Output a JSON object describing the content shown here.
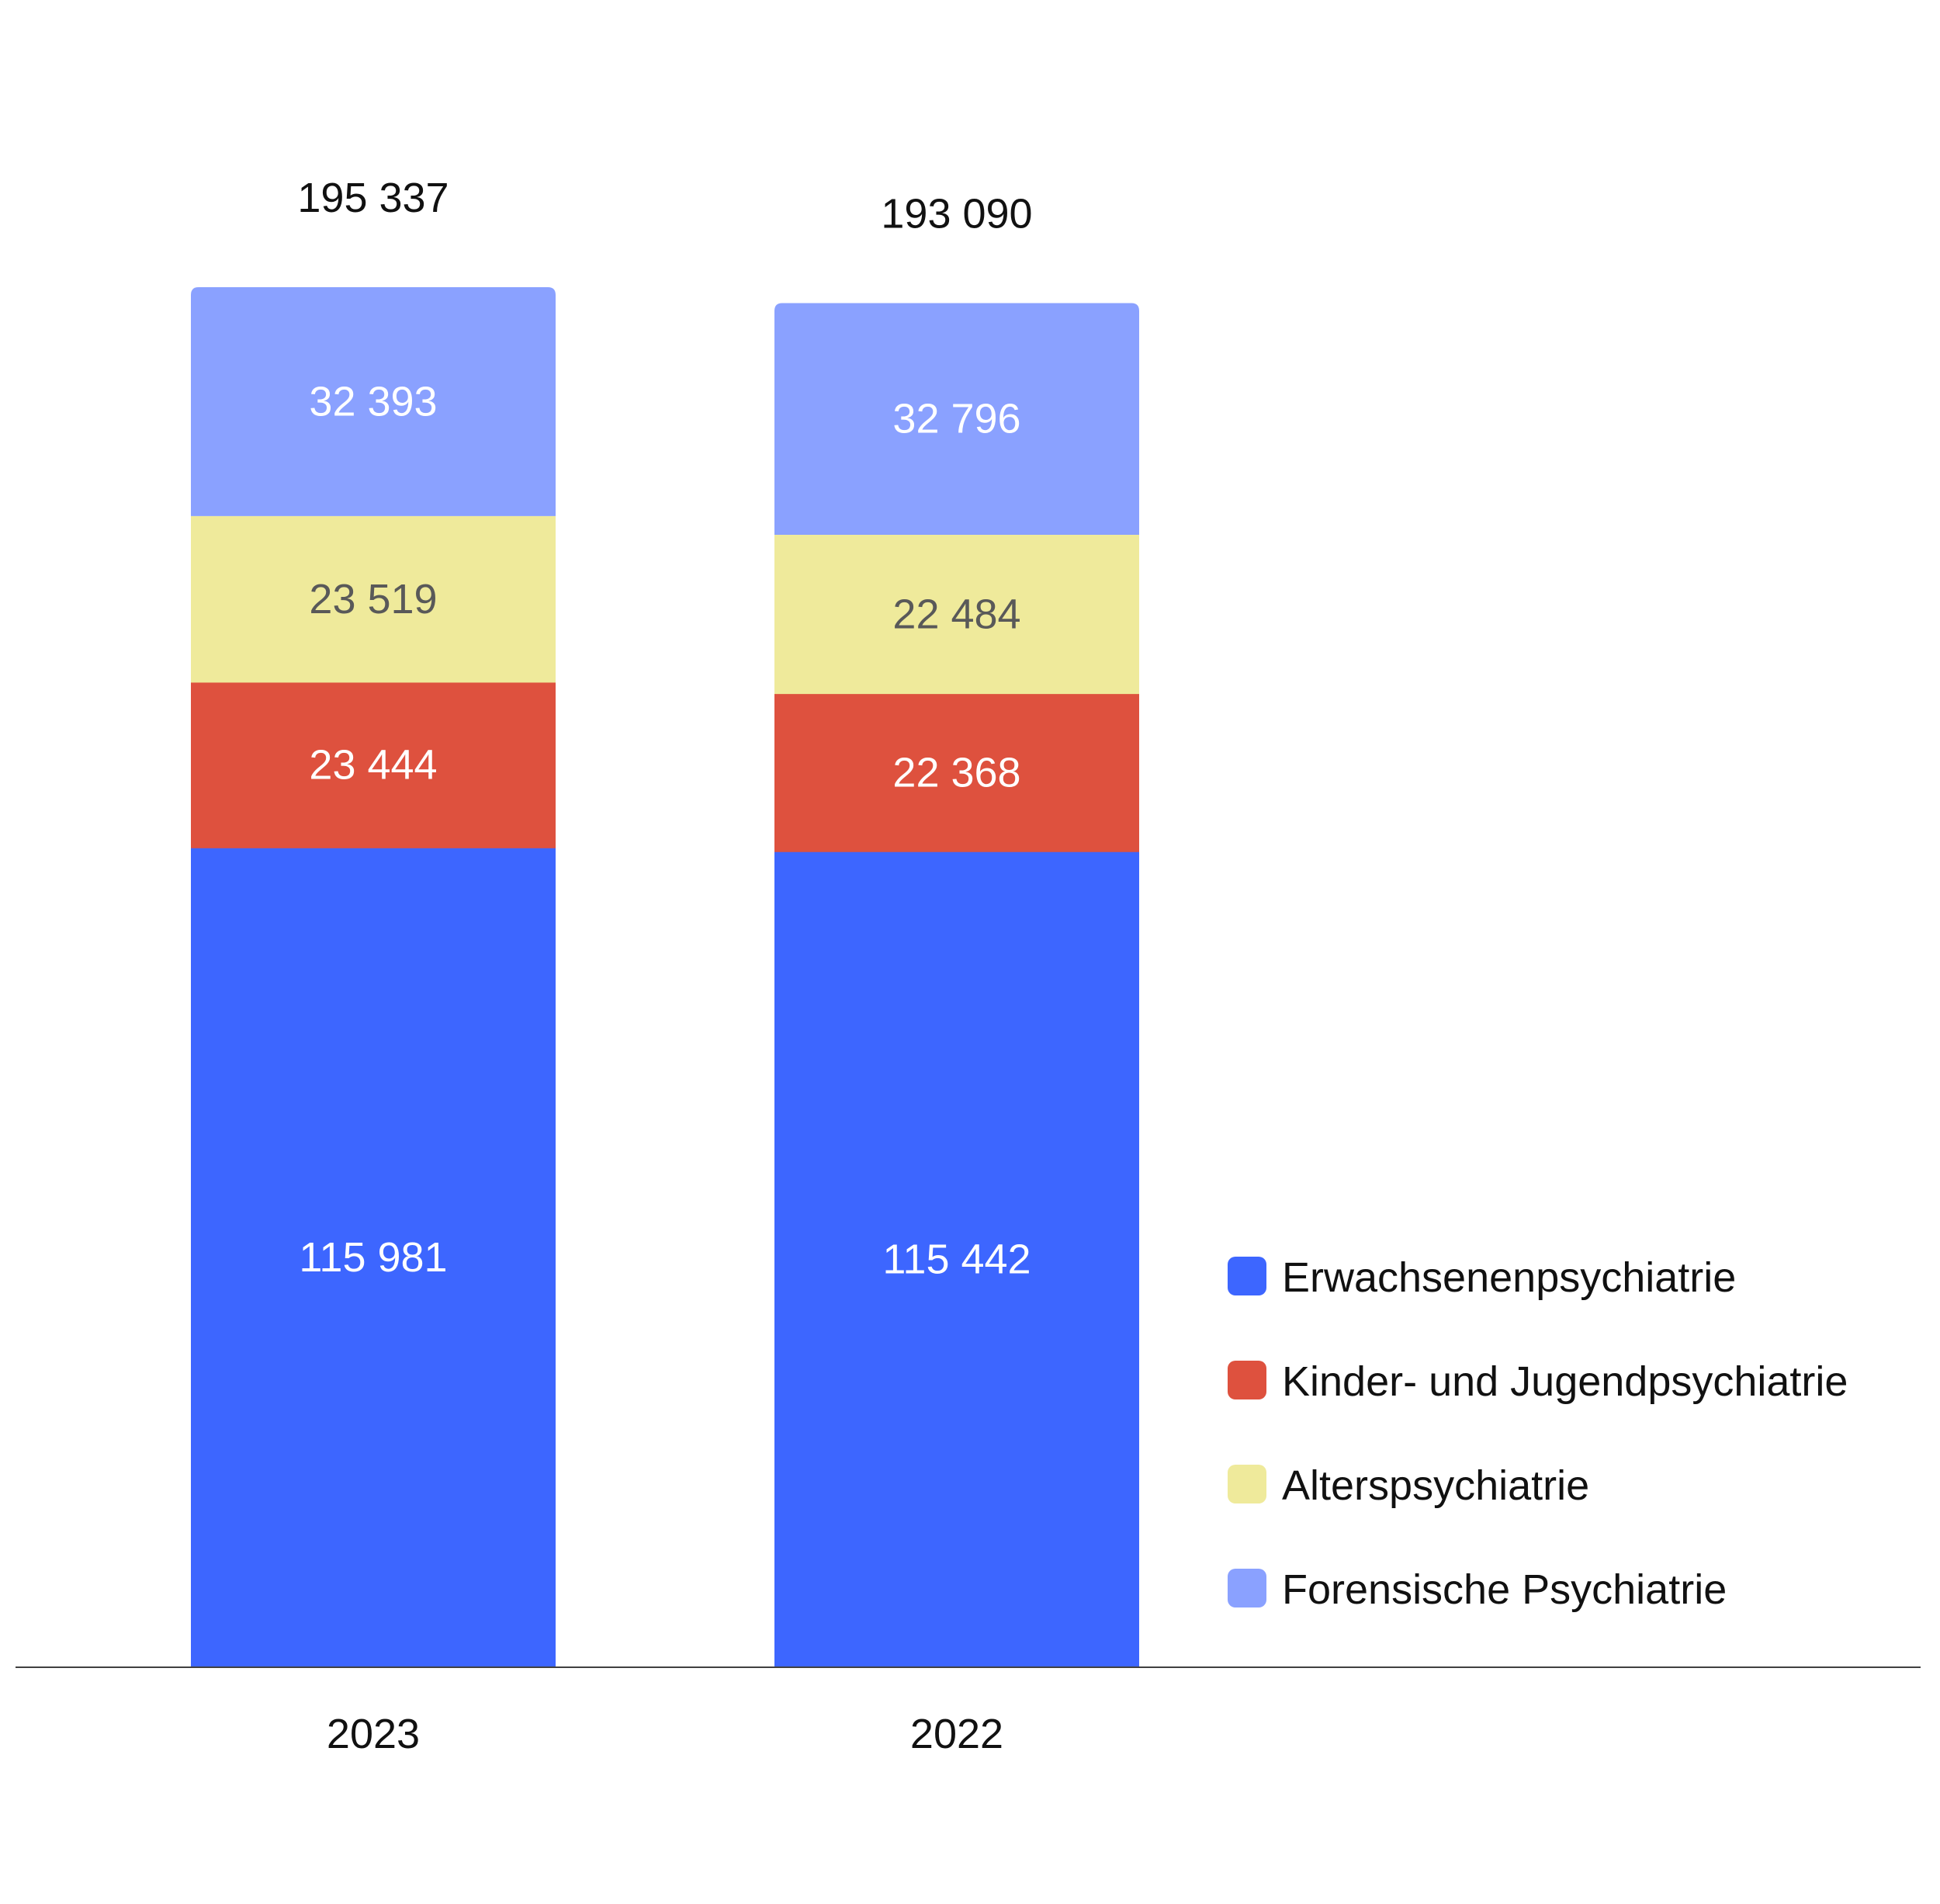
{
  "chart_data": {
    "type": "bar",
    "stacked": true,
    "title": "",
    "xlabel": "",
    "ylabel": "",
    "categories": [
      "2023",
      "2022"
    ],
    "totals": [
      "195 337",
      "193 090"
    ],
    "series": [
      {
        "name": "Erwachsenenpsychiatrie",
        "color": "#3d66ff",
        "label_color": "#ffffff",
        "values": [
          115981,
          115442
        ],
        "labels": [
          "115 981",
          "115 442"
        ]
      },
      {
        "name": "Kinder- und Jugendpsychiatrie",
        "color": "#de513e",
        "label_color": "#ffffff",
        "values": [
          23444,
          22368
        ],
        "labels": [
          "23 444",
          "22 368"
        ]
      },
      {
        "name": "Alterspsychiatrie",
        "color": "#efea9b",
        "label_color": "#595959",
        "values": [
          23519,
          22484
        ],
        "labels": [
          "23 519",
          "22 484"
        ]
      },
      {
        "name": "Forensische Psychiatrie",
        "color": "#8aa1ff",
        "label_color": "#ffffff",
        "values": [
          32393,
          32796
        ],
        "labels": [
          "32 393",
          "32 796"
        ]
      }
    ],
    "legend_position": "right",
    "grid": false,
    "baseline_color": "#404040"
  }
}
